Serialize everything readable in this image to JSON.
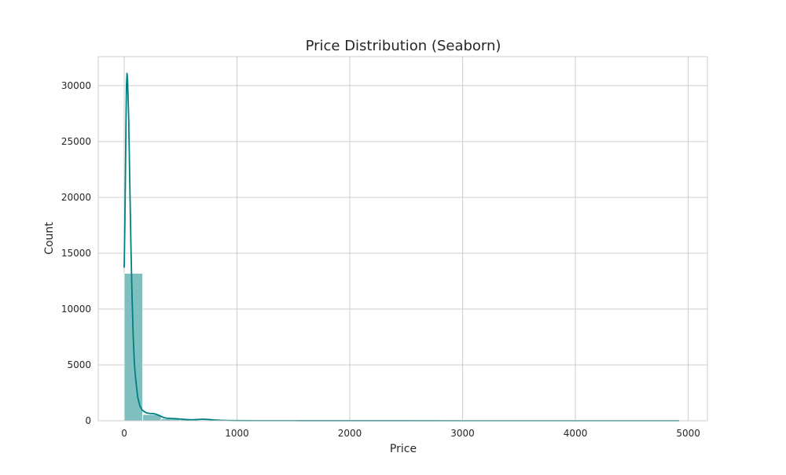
{
  "chart_data": {
    "type": "bar",
    "title": "Price Distribution (Seaborn)",
    "xlabel": "Price",
    "ylabel": "Count",
    "xlim": [
      -230,
      5170
    ],
    "ylim": [
      0,
      32600
    ],
    "xticks": [
      0,
      1000,
      2000,
      3000,
      4000,
      5000
    ],
    "yticks": [
      0,
      5000,
      10000,
      15000,
      20000,
      25000,
      30000
    ],
    "grid": true,
    "colors": {
      "bar": "#7fbfbf",
      "kde": "#008080",
      "grid": "#cccccc",
      "frame": "#cccccc"
    },
    "bins": [
      {
        "x0": 0,
        "x1": 164,
        "count": 13200
      },
      {
        "x0": 164,
        "x1": 328,
        "count": 560
      },
      {
        "x0": 328,
        "x1": 492,
        "count": 180
      },
      {
        "x0": 492,
        "x1": 656,
        "count": 100
      },
      {
        "x0": 656,
        "x1": 820,
        "count": 70
      },
      {
        "x0": 820,
        "x1": 984,
        "count": 25
      },
      {
        "x0": 984,
        "x1": 1148,
        "count": 12
      },
      {
        "x0": 1148,
        "x1": 1312,
        "count": 8
      },
      {
        "x0": 1312,
        "x1": 1476,
        "count": 6
      },
      {
        "x0": 1476,
        "x1": 1640,
        "count": 4
      },
      {
        "x0": 1640,
        "x1": 1804,
        "count": 3
      },
      {
        "x0": 1804,
        "x1": 1968,
        "count": 3
      },
      {
        "x0": 1968,
        "x1": 2132,
        "count": 2
      },
      {
        "x0": 2132,
        "x1": 2296,
        "count": 2
      },
      {
        "x0": 2296,
        "x1": 2460,
        "count": 1
      },
      {
        "x0": 2460,
        "x1": 2624,
        "count": 1
      },
      {
        "x0": 2624,
        "x1": 2788,
        "count": 1
      },
      {
        "x0": 2788,
        "x1": 2952,
        "count": 1
      },
      {
        "x0": 2952,
        "x1": 3116,
        "count": 1
      },
      {
        "x0": 3116,
        "x1": 3280,
        "count": 1
      },
      {
        "x0": 3280,
        "x1": 3444,
        "count": 0
      },
      {
        "x0": 3444,
        "x1": 3608,
        "count": 0
      },
      {
        "x0": 3608,
        "x1": 3772,
        "count": 0
      },
      {
        "x0": 3772,
        "x1": 3936,
        "count": 1
      },
      {
        "x0": 3936,
        "x1": 4100,
        "count": 0
      },
      {
        "x0": 4100,
        "x1": 4264,
        "count": 0
      },
      {
        "x0": 4264,
        "x1": 4428,
        "count": 0
      },
      {
        "x0": 4428,
        "x1": 4592,
        "count": 0
      },
      {
        "x0": 4592,
        "x1": 4756,
        "count": 0
      },
      {
        "x0": 4756,
        "x1": 4920,
        "count": 1
      }
    ],
    "kde": [
      [
        0,
        13700
      ],
      [
        5,
        17000
      ],
      [
        10,
        21000
      ],
      [
        15,
        26000
      ],
      [
        20,
        30000
      ],
      [
        25,
        31100
      ],
      [
        30,
        30500
      ],
      [
        40,
        27000
      ],
      [
        50,
        21000
      ],
      [
        60,
        15500
      ],
      [
        70,
        11000
      ],
      [
        80,
        7500
      ],
      [
        90,
        5200
      ],
      [
        100,
        3900
      ],
      [
        120,
        2100
      ],
      [
        140,
        1300
      ],
      [
        160,
        950
      ],
      [
        180,
        800
      ],
      [
        200,
        700
      ],
      [
        230,
        650
      ],
      [
        260,
        640
      ],
      [
        290,
        560
      ],
      [
        320,
        420
      ],
      [
        350,
        290
      ],
      [
        380,
        220
      ],
      [
        420,
        200
      ],
      [
        460,
        180
      ],
      [
        500,
        150
      ],
      [
        550,
        110
      ],
      [
        600,
        90
      ],
      [
        650,
        110
      ],
      [
        700,
        140
      ],
      [
        750,
        110
      ],
      [
        800,
        70
      ],
      [
        850,
        40
      ],
      [
        900,
        25
      ],
      [
        1000,
        15
      ],
      [
        1200,
        10
      ],
      [
        1500,
        6
      ],
      [
        2000,
        4
      ],
      [
        2500,
        3
      ],
      [
        3000,
        2
      ],
      [
        3500,
        2
      ],
      [
        4000,
        2
      ],
      [
        4500,
        1
      ],
      [
        4920,
        1
      ]
    ]
  }
}
